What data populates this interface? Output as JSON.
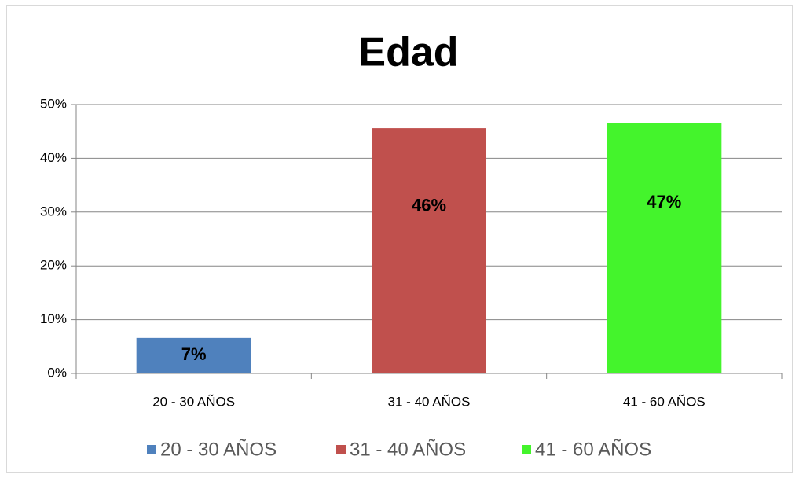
{
  "chart_data": {
    "type": "bar",
    "title": "Edad",
    "categories": [
      "20 - 30 AÑOS",
      "31 - 40 AÑOS",
      "41 - 60 AÑOS"
    ],
    "values": [
      6.6,
      45.6,
      46.6
    ],
    "value_labels": [
      "7%",
      "46%",
      "47%"
    ],
    "colors": [
      "#4f81bd",
      "#c0504d",
      "#44f42c"
    ],
    "ylim": [
      0,
      50
    ],
    "yticks": [
      {
        "value": 0,
        "label": "0%"
      },
      {
        "value": 10,
        "label": "10%"
      },
      {
        "value": 20,
        "label": "20%"
      },
      {
        "value": 30,
        "label": "30%"
      },
      {
        "value": 40,
        "label": "40%"
      },
      {
        "value": 50,
        "label": "50%"
      }
    ],
    "grid": true,
    "legend": "bottom"
  }
}
